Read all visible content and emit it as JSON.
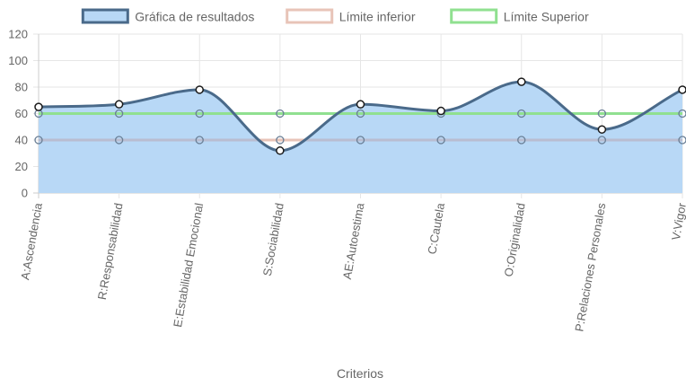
{
  "chart_data": {
    "type": "line",
    "title": "",
    "xlabel": "Criterios",
    "ylabel": "",
    "ylim": [
      0,
      120
    ],
    "yticks": [
      0,
      20,
      40,
      60,
      80,
      100,
      120
    ],
    "grid": true,
    "legend_position": "top",
    "categories": [
      "A:Ascendencia",
      "R:Responsabilidad",
      "E:Estabilidad Emocional",
      "S:Sociabilidad",
      "AE:Autoestima",
      "C:Cautela",
      "O:Originalidad",
      "P:Relaciones Personales",
      "V:Vigor"
    ],
    "series": [
      {
        "name": "Gráfica de resultados",
        "values": [
          65,
          67,
          78,
          32,
          67,
          62,
          84,
          48,
          78
        ],
        "line_color": "#4a6a8a",
        "fill_color": "#b8d8f6",
        "smooth": true,
        "filled": true
      },
      {
        "name": "Límite inferior",
        "values": [
          40,
          40,
          40,
          40,
          40,
          40,
          40,
          40,
          40
        ],
        "line_color": "#e8c4b8",
        "overlay_color": "#b0bcd4",
        "smooth": false,
        "filled": false
      },
      {
        "name": "Límite Superior",
        "values": [
          60,
          60,
          60,
          60,
          60,
          60,
          60,
          60,
          60
        ],
        "line_color": "#90e090",
        "smooth": false,
        "filled": false
      }
    ]
  },
  "legend": {
    "items": [
      {
        "label": "Gráfica de resultados",
        "fill": "#b8d8f6",
        "stroke": "#4a6a8a"
      },
      {
        "label": "Límite inferior",
        "fill": "#ffffff",
        "stroke": "#e8c4b8"
      },
      {
        "label": "Límite Superior",
        "fill": "#ffffff",
        "stroke": "#90e090"
      }
    ]
  }
}
